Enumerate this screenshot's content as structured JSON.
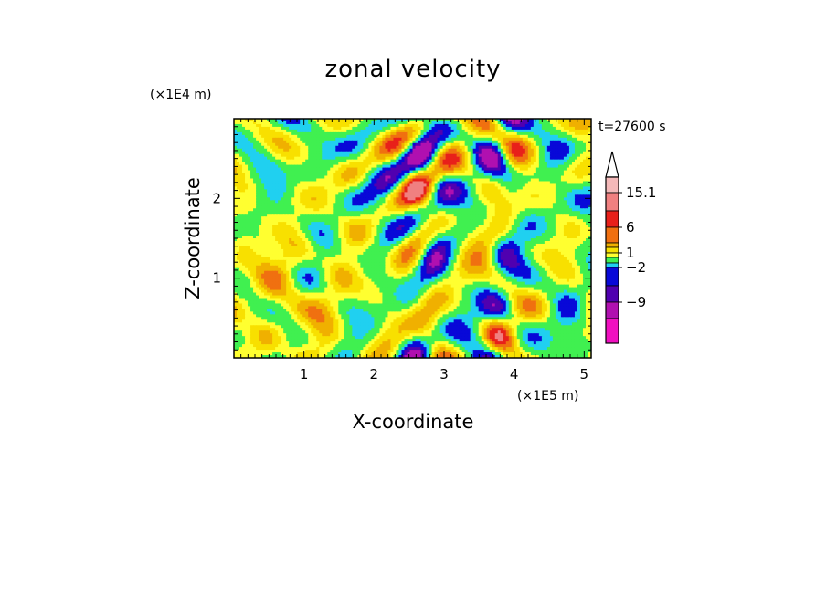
{
  "chart_data": {
    "type": "heatmap",
    "title": "zonal velocity",
    "xlabel": "X-coordinate",
    "ylabel": "Z-coordinate",
    "x_scale_label": "(×1E5 m)",
    "y_scale_label": "(×1E4 m)",
    "time_label": "t=27600 s",
    "xlim": [
      0,
      5.1
    ],
    "ylim": [
      0,
      3.0
    ],
    "x_ticks": [
      "1",
      "2",
      "3",
      "4",
      "5"
    ],
    "y_ticks": [
      "1",
      "2"
    ],
    "colorbar": {
      "tick_labels": [
        "15.1",
        "6",
        "1",
        "−2",
        "−9"
      ],
      "levels_top_to_bottom": [
        {
          "color": "#f4b9b9"
        },
        {
          "color": "#f08080"
        },
        {
          "color": "#e8201a"
        },
        {
          "color": "#f07010"
        },
        {
          "color": "#f0b000"
        },
        {
          "color": "#f8e000"
        },
        {
          "color": "#ffff30"
        },
        {
          "color": "#40f050"
        },
        {
          "color": "#20d0f0"
        },
        {
          "color": "#0808d8"
        },
        {
          "color": "#5000b0"
        },
        {
          "color": "#b010b0"
        },
        {
          "color": "#f010c0"
        }
      ],
      "extend": "max"
    }
  }
}
